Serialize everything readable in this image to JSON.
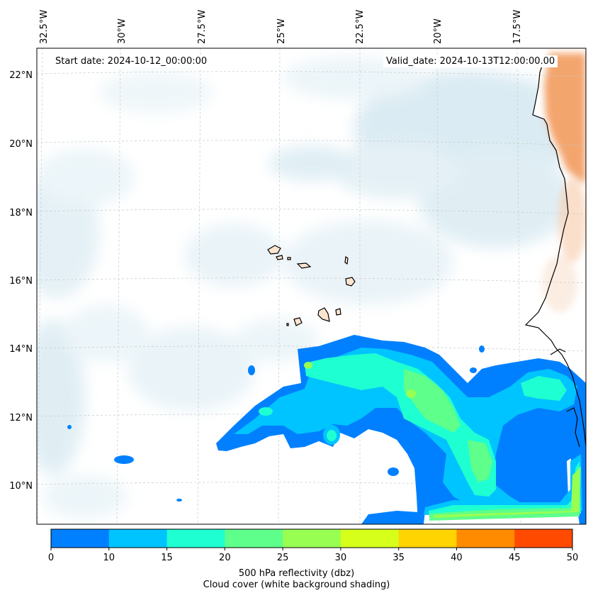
{
  "map": {
    "start_date": "Start date: 2024-10-12_00:00:00",
    "valid_date": "Valid_date: 2024-10-13T12:00:00.00",
    "lon_labels": [
      "32.5°W",
      "30°W",
      "27.5°W",
      "25°W",
      "22.5°W",
      "20°W",
      "17.5°W"
    ],
    "lat_labels": [
      "22°N",
      "20°N",
      "18°N",
      "16°N",
      "14°N",
      "12°N",
      "10°N"
    ],
    "extent": {
      "lon_min": -33,
      "lon_max": -15.5,
      "lat_min": 9,
      "lat_max": 22.8
    },
    "gridlines": true
  },
  "colorbar": {
    "ticks": [
      "0",
      "10",
      "15",
      "20",
      "25",
      "30",
      "35",
      "40",
      "45",
      "50"
    ],
    "colors": [
      "#0080ff",
      "#00c4ff",
      "#1effd2",
      "#5eff8a",
      "#98ff52",
      "#d6ff1a",
      "#ffd400",
      "#ff8c00",
      "#ff4a00"
    ],
    "label_line1": "500 hPa reflectivity (dbz)",
    "label_line2": "Cloud cover (white background shading)"
  },
  "colors": {
    "cloud": "#d8eaf2",
    "land_heat": "#f2a066",
    "coast": "#000000"
  }
}
